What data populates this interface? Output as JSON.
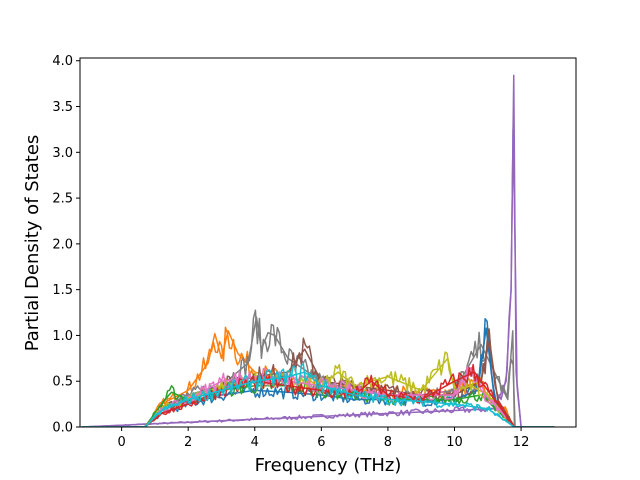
{
  "chart_data": {
    "type": "line",
    "title": "",
    "xlabel": "Frequency (THz)",
    "ylabel": "Partial Density of States",
    "xlim": [
      -1.25,
      13.65
    ],
    "ylim": [
      0.0,
      4.03
    ],
    "xticks": [
      0,
      2,
      4,
      6,
      8,
      10,
      12
    ],
    "yticks": [
      0.0,
      0.5,
      1.0,
      1.5,
      2.0,
      2.5,
      3.0,
      3.5,
      4.0
    ],
    "xtick_labels": [
      "0",
      "2",
      "4",
      "6",
      "8",
      "10",
      "12"
    ],
    "ytick_labels": [
      "0.0",
      "0.5",
      "1.0",
      "1.5",
      "2.0",
      "2.5",
      "3.0",
      "3.5",
      "4.0"
    ],
    "grid": false,
    "legend": "none",
    "series_note": "many overlapping projected-DOS curves (default tab10 color cycle)",
    "series": [
      {
        "color": "#9467bd",
        "x": [
          -1.2,
          11.2,
          11.55,
          11.7,
          11.78,
          11.85,
          12.0,
          13.0
        ],
        "y": [
          0,
          0.2,
          0.5,
          1.5,
          3.84,
          0.6,
          0,
          0
        ]
      },
      {
        "color": "#ff7f0e",
        "x": [
          -1.2,
          0.7,
          1.2,
          2.0,
          2.6,
          2.8,
          3.0,
          3.2,
          3.5,
          4.0,
          5.0,
          6.0,
          7.0,
          8.0,
          9.0,
          10.0,
          10.8,
          11.0,
          11.5,
          11.8,
          13.0
        ],
        "y": [
          0,
          0,
          0.25,
          0.4,
          0.7,
          1.02,
          0.75,
          1.05,
          0.8,
          0.6,
          0.5,
          0.45,
          0.4,
          0.4,
          0.35,
          0.4,
          0.5,
          0.3,
          0.2,
          0,
          0
        ]
      },
      {
        "color": "#7f7f7f",
        "x": [
          -1.2,
          0.7,
          1.2,
          2.0,
          3.0,
          3.8,
          4.05,
          4.2,
          4.4,
          4.6,
          5.0,
          6.0,
          7.0,
          8.0,
          9.0,
          10.0,
          10.8,
          11.6,
          11.75,
          11.8,
          13.0
        ],
        "y": [
          0,
          0,
          0.2,
          0.35,
          0.45,
          0.7,
          1.2,
          0.85,
          1.03,
          1.0,
          0.75,
          0.5,
          0.4,
          0.35,
          0.35,
          0.4,
          0.9,
          0.3,
          1.05,
          0,
          0
        ]
      },
      {
        "color": "#1f77b4",
        "x": [
          -1.2,
          0.7,
          1.2,
          2.0,
          3.0,
          4.0,
          5.0,
          6.0,
          7.0,
          8.0,
          9.0,
          10.0,
          10.7,
          10.95,
          11.2,
          11.8,
          13.0
        ],
        "y": [
          0,
          0,
          0.15,
          0.25,
          0.35,
          0.4,
          0.38,
          0.35,
          0.3,
          0.3,
          0.28,
          0.3,
          0.4,
          1.08,
          0.3,
          0,
          0
        ]
      },
      {
        "color": "#8c564b",
        "x": [
          -1.2,
          0.7,
          1.2,
          2.0,
          3.0,
          4.0,
          5.0,
          5.5,
          6.0,
          7.0,
          8.0,
          9.0,
          10.0,
          10.8,
          11.05,
          11.3,
          11.8,
          13.0
        ],
        "y": [
          0,
          0,
          0.2,
          0.3,
          0.45,
          0.55,
          0.6,
          0.85,
          0.5,
          0.45,
          0.4,
          0.35,
          0.35,
          0.5,
          0.95,
          0.3,
          0,
          0
        ]
      },
      {
        "color": "#2ca02c",
        "x": [
          -1.2,
          0.7,
          1.0,
          1.3,
          1.5,
          2.0,
          3.0,
          4.0,
          5.0,
          6.0,
          7.0,
          8.0,
          9.0,
          10.0,
          10.8,
          11.8,
          13.0
        ],
        "y": [
          0,
          0,
          0.15,
          0.3,
          0.38,
          0.3,
          0.4,
          0.45,
          0.45,
          0.4,
          0.35,
          0.3,
          0.3,
          0.3,
          0.35,
          0,
          0
        ]
      },
      {
        "color": "#bcbd22",
        "x": [
          -1.2,
          0.7,
          1.2,
          2.0,
          3.0,
          4.0,
          5.0,
          6.0,
          6.5,
          7.0,
          8.0,
          9.0,
          9.8,
          10.0,
          10.5,
          11.0,
          11.8,
          13.0
        ],
        "y": [
          0,
          0,
          0.2,
          0.3,
          0.45,
          0.5,
          0.5,
          0.45,
          0.6,
          0.45,
          0.55,
          0.4,
          0.75,
          0.4,
          0.45,
          0.35,
          0,
          0
        ]
      },
      {
        "color": "#e377c2",
        "x": [
          -1.2,
          0.7,
          1.2,
          2.0,
          3.0,
          4.0,
          5.0,
          6.0,
          7.0,
          8.0,
          9.0,
          10.0,
          10.5,
          10.8,
          11.8,
          13.0
        ],
        "y": [
          0,
          0,
          0.18,
          0.3,
          0.5,
          0.55,
          0.5,
          0.45,
          0.4,
          0.35,
          0.35,
          0.35,
          0.65,
          0.4,
          0,
          0
        ]
      },
      {
        "color": "#d62728",
        "x": [
          -1.2,
          0.7,
          1.2,
          2.0,
          3.0,
          4.0,
          5.0,
          6.0,
          7.0,
          7.5,
          8.0,
          9.0,
          10.0,
          10.6,
          11.8,
          13.0
        ],
        "y": [
          0,
          0,
          0.15,
          0.25,
          0.4,
          0.5,
          0.45,
          0.4,
          0.35,
          0.5,
          0.35,
          0.3,
          0.5,
          0.6,
          0,
          0
        ]
      },
      {
        "color": "#17becf",
        "x": [
          -1.2,
          0.7,
          1.2,
          2.0,
          3.0,
          4.0,
          5.0,
          5.5,
          6.0,
          7.0,
          8.0,
          9.0,
          10.0,
          11.0,
          11.8,
          13.0
        ],
        "y": [
          0,
          0,
          0.18,
          0.3,
          0.4,
          0.5,
          0.55,
          0.6,
          0.45,
          0.35,
          0.3,
          0.28,
          0.25,
          0.2,
          0,
          0
        ]
      }
    ]
  }
}
